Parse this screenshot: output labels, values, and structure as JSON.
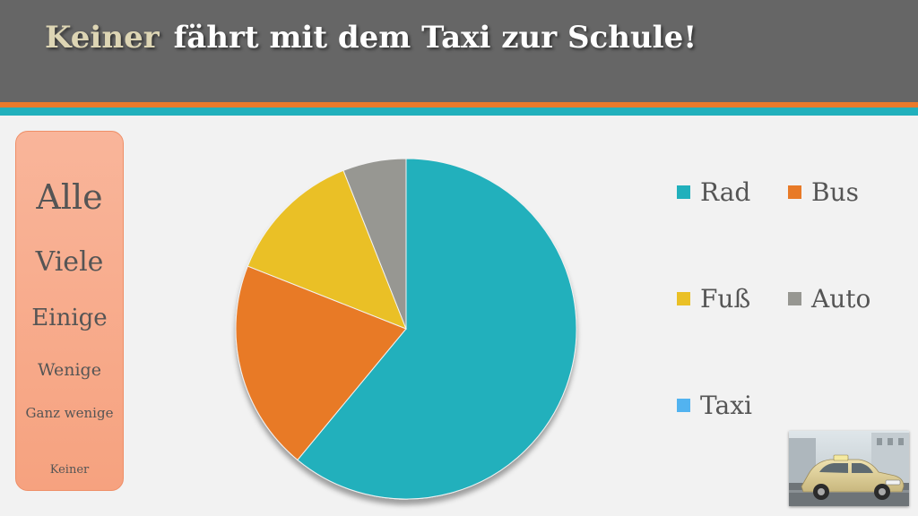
{
  "title": {
    "highlight": "Keiner",
    "rest": "fährt mit dem Taxi zur Schule!"
  },
  "scale": [
    "Alle",
    "Viele",
    "Einige",
    "Wenige",
    "Ganz wenige",
    "Keiner"
  ],
  "colors": {
    "header": "#666666",
    "stripe_orange": "#e97a2b",
    "stripe_teal": "#21b0bc",
    "scale_box": "#f7a98a"
  },
  "chart_data": {
    "type": "pie",
    "title": "",
    "categories": [
      "Rad",
      "Bus",
      "Fuß",
      "Auto",
      "Taxi"
    ],
    "values": [
      61,
      20,
      13,
      6,
      0
    ],
    "colors": [
      "#21b0bc",
      "#e87a27",
      "#eac026",
      "#979792",
      "#52b3f0"
    ],
    "legend_position": "right"
  },
  "image": {
    "icon": "taxi-car-photo"
  }
}
